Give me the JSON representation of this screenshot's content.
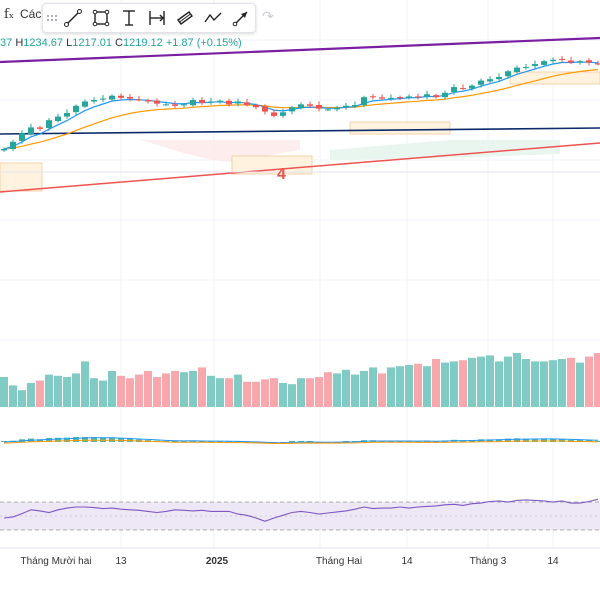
{
  "toolbar": {
    "fx_glyph": "fₓ",
    "indicators_label": "Các",
    "tools": [
      "trend-line-icon",
      "rectangle-icon",
      "text-cursor-icon",
      "date-range-icon",
      "parallel-channel-icon",
      "path-icon",
      "arrow-icon"
    ],
    "redo_glyph": "↷"
  },
  "legend": {
    "o_value": "37",
    "h_label": "H",
    "h_value": "1234.67",
    "l_label": "L",
    "l_value": "1217.01",
    "c_label": "C",
    "c_value": "1219.12",
    "change": "+1.87 (+0.15%)"
  },
  "annotation_label": "4",
  "colors": {
    "up": "#26a69a",
    "down": "#ef5350",
    "vol_up": "#80cbc4",
    "vol_down": "#f8a8ad",
    "ema_fast": "#2196f3",
    "ema_slow": "#ff9800",
    "trendline_upper": "#7b1fa2",
    "trendline_lower": "#ef5350",
    "horizontal_line": "#0d2b6b",
    "rsi": "#7e57c2",
    "rsi_band": "#ede7f6"
  },
  "chart_data": {
    "type": "candlestick",
    "x_ticks": [
      {
        "label": "Tháng Mười hai",
        "bold": false
      },
      {
        "label": "13",
        "bold": false
      },
      {
        "label": "2025",
        "bold": true
      },
      {
        "label": "Tháng Hai",
        "bold": false
      },
      {
        "label": "14",
        "bold": false
      },
      {
        "label": "Tháng 3",
        "bold": false
      },
      {
        "label": "14",
        "bold": false
      }
    ],
    "last_bar": {
      "close": 1219.12,
      "high": 1234.67,
      "low": 1217.01,
      "change": 1.87,
      "change_pct": 0.15
    },
    "price_series": [
      50,
      60,
      72,
      80,
      78,
      90,
      95,
      100,
      110,
      116,
      118,
      120,
      124,
      121,
      120,
      118,
      116,
      113,
      112,
      110,
      112,
      118,
      114,
      116,
      117,
      112,
      116,
      111,
      108,
      102,
      96,
      101,
      108,
      112,
      110,
      106,
      105,
      107,
      110,
      111,
      122,
      123,
      120,
      121,
      122,
      123,
      122,
      126,
      122,
      128,
      136,
      134,
      138,
      145,
      147,
      150,
      158,
      163,
      164,
      168,
      172,
      174,
      174,
      170,
      172,
      170,
      168
    ],
    "volume": [
      25,
      18,
      14,
      20,
      22,
      27,
      26,
      25,
      28,
      38,
      24,
      22,
      30,
      26,
      24,
      27,
      30,
      25,
      28,
      30,
      29,
      30,
      33,
      26,
      24,
      24,
      27,
      21,
      21,
      23,
      24,
      20,
      19,
      24,
      24,
      25,
      29,
      28,
      31,
      27,
      30,
      33,
      28,
      33,
      34,
      35,
      36,
      34,
      40,
      37,
      38,
      39,
      41,
      42,
      43,
      38,
      42,
      45,
      40,
      38,
      38,
      39,
      40,
      41,
      37,
      42,
      45
    ],
    "rsi": [
      40,
      42,
      48,
      55,
      53,
      50,
      55,
      58,
      60,
      60,
      59,
      57,
      58,
      56,
      55,
      54,
      52,
      50,
      52,
      55,
      54,
      53,
      54,
      52,
      52,
      52,
      47,
      45,
      40,
      34,
      40,
      45,
      50,
      52,
      50,
      47,
      49,
      51,
      53,
      56,
      60,
      57,
      58,
      58,
      60,
      58,
      60,
      61,
      62,
      64,
      65,
      63,
      66,
      67,
      70,
      71,
      69,
      72,
      73,
      72,
      71,
      69,
      71,
      67,
      67,
      70,
      74
    ]
  }
}
